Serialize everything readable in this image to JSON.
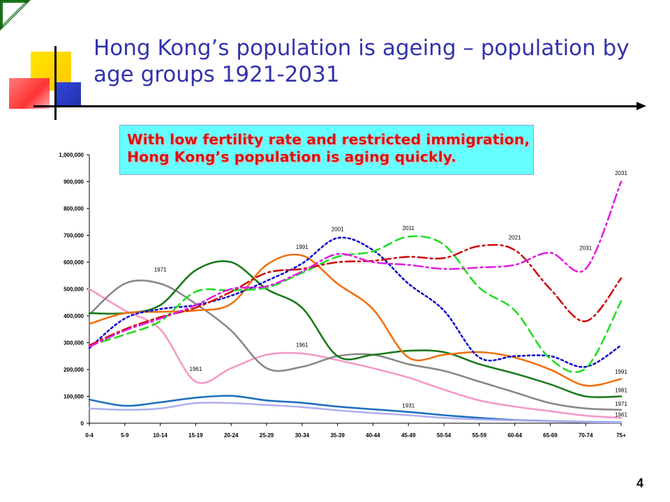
{
  "title": "Hong Kong’s population is ageing – population by age groups 1921-2031",
  "callout": {
    "line1": "With low fertility rate and restricted immigration,",
    "line2": "Hong Kong’s population is aging quickly."
  },
  "page_number": "4",
  "colors": {
    "title": "#3333aa",
    "callout_bg": "#66ffff",
    "callout_text": "#dd1111"
  },
  "chart_data": {
    "type": "line",
    "title": "",
    "xlabel": "",
    "ylabel": "",
    "ylim": [
      0,
      1000000
    ],
    "yticks": [
      0,
      100000,
      200000,
      300000,
      400000,
      500000,
      600000,
      700000,
      800000,
      900000,
      1000000
    ],
    "ytick_labels": [
      "0",
      "100,000",
      "200,000",
      "300,000",
      "400,000",
      "500,000",
      "600,000",
      "700,000",
      "800,000",
      "900,000",
      "1,000,000"
    ],
    "categories": [
      "0-4",
      "5-9",
      "10-14",
      "15-19",
      "20-24",
      "25-29",
      "30-34",
      "35-39",
      "40-44",
      "45-49",
      "50-54",
      "55-59",
      "60-64",
      "65-69",
      "70-74",
      "75+"
    ],
    "grid": false,
    "series": [
      {
        "name": "1931",
        "color": "#1f6fbf",
        "dash": "solid",
        "values": [
          88000,
          65000,
          78000,
          95000,
          102000,
          85000,
          76000,
          62000,
          52000,
          42000,
          30000,
          20000,
          12000,
          8000,
          5000,
          4000
        ]
      },
      {
        "name": "",
        "color": "#b0b0f0",
        "dash": "solid",
        "values": [
          55000,
          50000,
          55000,
          75000,
          75000,
          68000,
          60000,
          48000,
          38000,
          30000,
          20000,
          14000,
          10000,
          7000,
          4000,
          3000
        ]
      },
      {
        "name": "1961",
        "color": "#f49ac8",
        "dash": "solid",
        "values": [
          500000,
          420000,
          350000,
          155000,
          205000,
          255000,
          260000,
          235000,
          205000,
          170000,
          125000,
          85000,
          62000,
          45000,
          28000,
          20000
        ]
      },
      {
        "name": "1971",
        "color": "#888888",
        "dash": "solid",
        "values": [
          405000,
          520000,
          520000,
          445000,
          345000,
          205000,
          210000,
          250000,
          255000,
          220000,
          195000,
          155000,
          115000,
          75000,
          55000,
          50000
        ]
      },
      {
        "name": "1981",
        "color": "#1c7a1c",
        "dash": "solid",
        "values": [
          410000,
          410000,
          440000,
          570000,
          600000,
          500000,
          430000,
          250000,
          255000,
          270000,
          265000,
          220000,
          185000,
          145000,
          100000,
          100000
        ]
      },
      {
        "name": "1991",
        "color": "#f07010",
        "dash": "solid",
        "values": [
          370000,
          410000,
          415000,
          420000,
          445000,
          590000,
          625000,
          520000,
          425000,
          245000,
          255000,
          265000,
          245000,
          200000,
          140000,
          165000
        ]
      },
      {
        "name": "2001",
        "color": "#1010c8",
        "dash": "dot",
        "values": [
          280000,
          390000,
          425000,
          440000,
          475000,
          530000,
          595000,
          690000,
          645000,
          520000,
          420000,
          245000,
          250000,
          250000,
          210000,
          290000
        ]
      },
      {
        "name": "2011",
        "color": "#22dd22",
        "dash": "dash",
        "values": [
          290000,
          330000,
          380000,
          490000,
          495000,
          505000,
          560000,
          620000,
          640000,
          695000,
          665000,
          505000,
          420000,
          240000,
          205000,
          455000
        ]
      },
      {
        "name": "2021",
        "color": "#cc1111",
        "dash": "dashdot",
        "values": [
          290000,
          350000,
          395000,
          430000,
          490000,
          560000,
          575000,
          600000,
          605000,
          620000,
          615000,
          660000,
          645000,
          500000,
          380000,
          540000
        ]
      },
      {
        "name": "2031",
        "color": "#dd22dd",
        "dash": "dashdot",
        "values": [
          285000,
          345000,
          390000,
          440000,
          500000,
          510000,
          565000,
          630000,
          600000,
          590000,
          575000,
          580000,
          590000,
          635000,
          575000,
          900000
        ]
      }
    ],
    "annotations": [
      {
        "text": "1971",
        "x": "10-14",
        "y": 565000
      },
      {
        "text": "1961",
        "x": "15-19",
        "y": 195000
      },
      {
        "text": "1961",
        "x": "30-34",
        "y": 285000
      },
      {
        "text": "1991",
        "x": "30-34",
        "y": 650000
      },
      {
        "text": "2001",
        "x": "35-39",
        "y": 715000
      },
      {
        "text": "2011",
        "x": "45-49",
        "y": 720000
      },
      {
        "text": "2021",
        "x": "60-64",
        "y": 685000
      },
      {
        "text": "2031",
        "x": "70-74",
        "y": 645000
      },
      {
        "text": "1931",
        "x": "45-49",
        "y": 58000
      },
      {
        "text": "2031",
        "x": "75+",
        "y": 925000
      },
      {
        "text": "1991",
        "x": "75+",
        "y": 185000
      },
      {
        "text": "1981",
        "x": "75+",
        "y": 115000
      },
      {
        "text": "1971",
        "x": "75+",
        "y": 65000
      },
      {
        "text": "1961",
        "x": "75+",
        "y": 25000
      }
    ]
  }
}
